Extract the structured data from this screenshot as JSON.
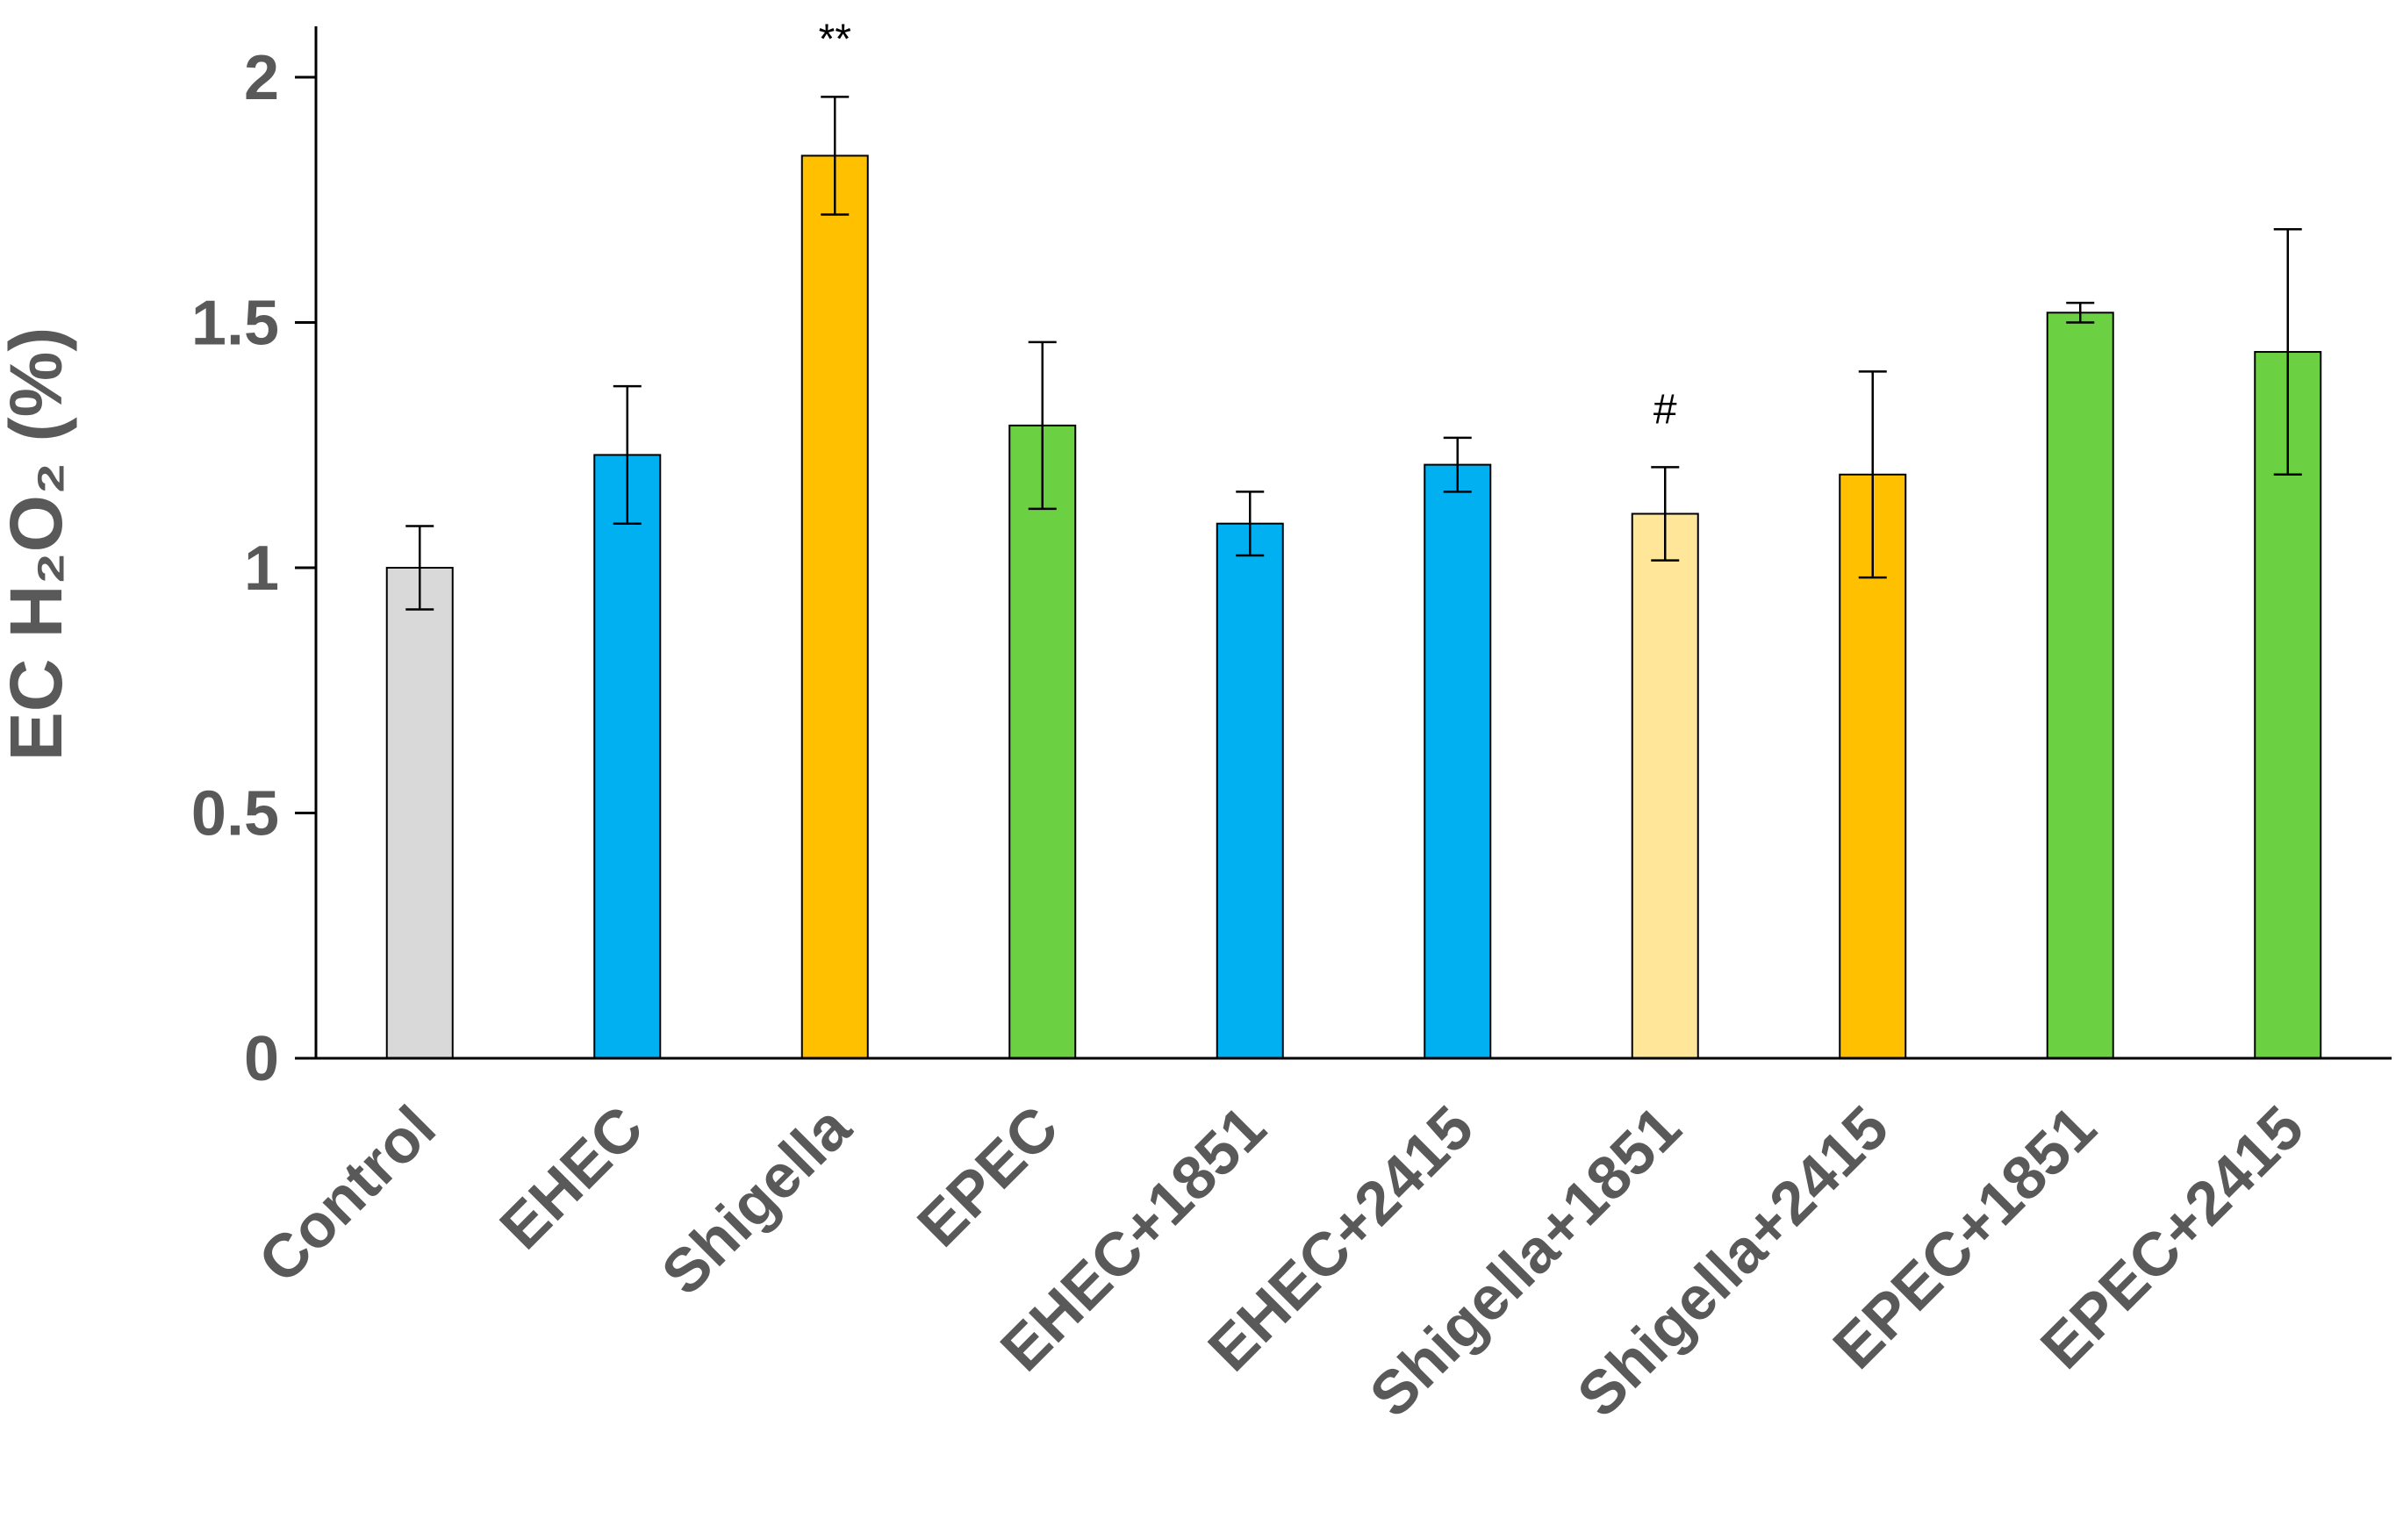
{
  "chart_data": {
    "type": "bar",
    "title": "",
    "xlabel": "",
    "ylabel": "EC H₂O₂ (%)",
    "ylim": [
      0,
      2
    ],
    "yticks": [
      0,
      0.5,
      1,
      1.5,
      2
    ],
    "ytick_labels": [
      "0",
      "0.5",
      "1",
      "1.5",
      "2"
    ],
    "grid": false,
    "legend": "none",
    "categories": [
      "Control",
      "EHEC",
      "Shigella",
      "EPEC",
      "EHEC+1851",
      "EHEC+2415",
      "Shigella+1851",
      "Shigella+2415",
      "EPEC+1851",
      "EPEC+2415"
    ],
    "values": [
      1.0,
      1.23,
      1.84,
      1.29,
      1.09,
      1.21,
      1.11,
      1.19,
      1.52,
      1.44
    ],
    "errors": [
      0.085,
      0.14,
      0.12,
      0.17,
      0.065,
      0.055,
      0.095,
      0.21,
      0.02,
      0.25
    ],
    "colors": [
      "#d9d9d9",
      "#00b0f0",
      "#ffc000",
      "#6cd043",
      "#00b0f0",
      "#00b0f0",
      "#ffe699",
      "#ffc000",
      "#6cd043",
      "#6cd043"
    ],
    "annotations": [
      {
        "category": "Shigella",
        "text": "**"
      },
      {
        "category": "Shigella+1851",
        "text": "#"
      }
    ]
  }
}
